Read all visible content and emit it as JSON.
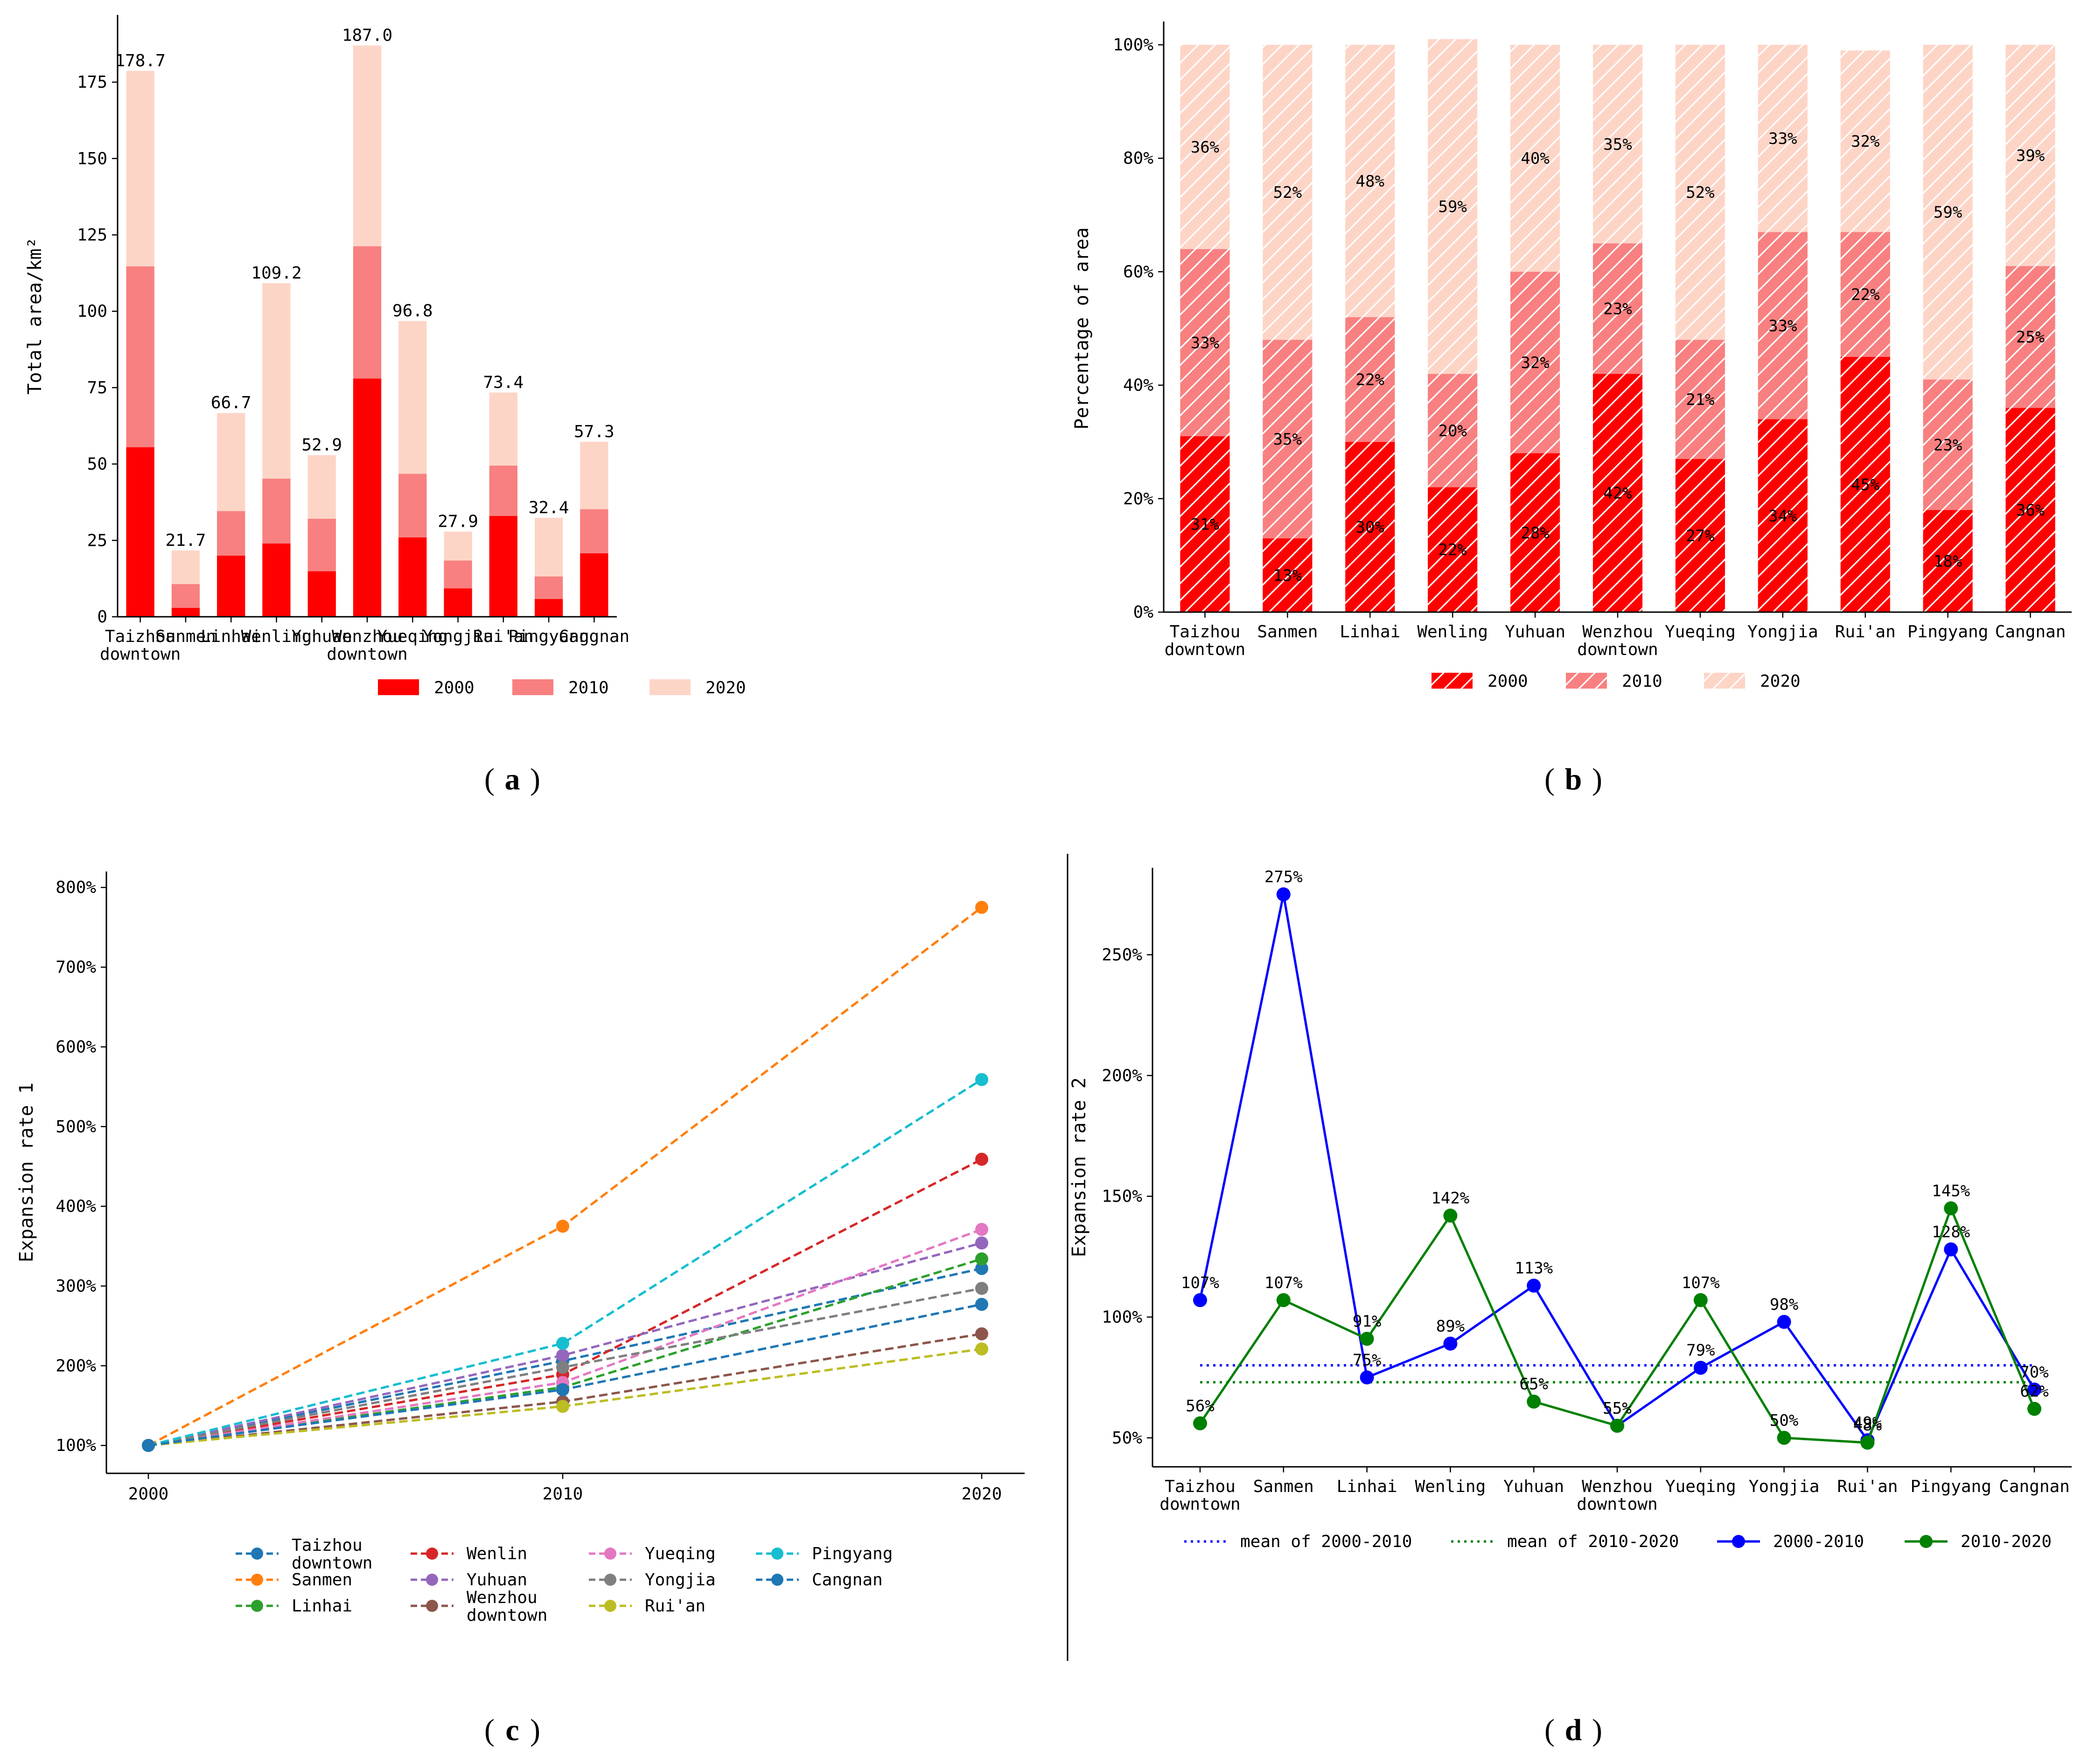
{
  "colors": {
    "c2000": "#ff0000",
    "c2010": "#f88080",
    "c2020": "#fdd5c7",
    "blue": "#0000ff",
    "green": "#008000",
    "axis": "#000000"
  },
  "chart_data": [
    {
      "panel": "a",
      "panel_label": "a",
      "type": "bar",
      "stacked": true,
      "categories": [
        "Taizhou\ndowntown",
        "Sanmen",
        "Linhai",
        "Wenling",
        "Yuhuan",
        "Wenzhou\ndowntown",
        "Yueqing",
        "Yongjia",
        "Rui'an",
        "Pingyang",
        "Cangnan"
      ],
      "series": [
        {
          "name": "2000",
          "values": [
            55.5,
            2.9,
            20.0,
            24.0,
            14.9,
            78.0,
            26.0,
            9.3,
            33.0,
            5.8,
            20.8
          ]
        },
        {
          "name": "2010",
          "values": [
            59.2,
            7.8,
            14.6,
            21.2,
            17.2,
            43.3,
            20.8,
            9.1,
            16.5,
            7.4,
            14.4
          ]
        },
        {
          "name": "2020",
          "values": [
            64.0,
            11.0,
            32.1,
            64.0,
            20.8,
            65.7,
            50.0,
            9.5,
            23.9,
            19.2,
            22.1
          ]
        }
      ],
      "totals": [
        178.7,
        21.7,
        66.7,
        109.2,
        52.9,
        187.0,
        96.8,
        27.9,
        73.4,
        32.4,
        57.3
      ],
      "total_labels": [
        "178.7",
        "21.7",
        "66.7",
        "109.2",
        "52.9",
        "187.0",
        "96.8",
        "27.9",
        "73.4",
        "32.4",
        "57.3"
      ],
      "ylabel": "Total area/km²",
      "ylim": [
        0,
        197
      ],
      "yticks": [
        0,
        25,
        50,
        75,
        100,
        125,
        150,
        175
      ],
      "legend": [
        "2000",
        "2010",
        "2020"
      ],
      "legend_position": "bottom"
    },
    {
      "panel": "b",
      "panel_label": "b",
      "type": "bar",
      "stacked": true,
      "hatch": "diagonal",
      "categories": [
        "Taizhou\ndowntown",
        "Sanmen",
        "Linhai",
        "Wenling",
        "Yuhuan",
        "Wenzhou\ndowntown",
        "Yueqing",
        "Yongjia",
        "Rui'an",
        "Pingyang",
        "Cangnan"
      ],
      "series": [
        {
          "name": "2000",
          "values": [
            31,
            13,
            30,
            22,
            28,
            42,
            27,
            34,
            45,
            18,
            36
          ]
        },
        {
          "name": "2010",
          "values": [
            33,
            35,
            22,
            20,
            32,
            23,
            21,
            33,
            22,
            23,
            25
          ]
        },
        {
          "name": "2020",
          "values": [
            36,
            52,
            48,
            59,
            40,
            35,
            52,
            33,
            32,
            59,
            39
          ]
        }
      ],
      "labels": [
        [
          "31%",
          "13%",
          "30%",
          "22%",
          "28%",
          "42%",
          "27%",
          "34%",
          "45%",
          "18%",
          "36%"
        ],
        [
          "33%",
          "35%",
          "22%",
          "20%",
          "32%",
          "23%",
          "21%",
          "33%",
          "22%",
          "23%",
          "25%"
        ],
        [
          "36%",
          "52%",
          "48%",
          "59%",
          "40%",
          "35%",
          "52%",
          "33%",
          "32%",
          "59%",
          "39%"
        ]
      ],
      "ylabel": "Percentage of area",
      "ylim": [
        0,
        100
      ],
      "yticks": [
        "0%",
        "20%",
        "40%",
        "60%",
        "80%",
        "100%"
      ],
      "legend": [
        "2000",
        "2010",
        "2020"
      ],
      "legend_position": "bottom"
    },
    {
      "panel": "c",
      "panel_label": "c",
      "type": "line",
      "x": [
        2000,
        2010,
        2020
      ],
      "xticks": [
        "2000",
        "2010",
        "2020"
      ],
      "series": [
        {
          "name": "Taizhou\ndowntown",
          "color": "#1f77b4",
          "values": [
            100,
            206,
            322
          ]
        },
        {
          "name": "Sanmen",
          "color": "#ff7f0e",
          "values": [
            100,
            375,
            775
          ]
        },
        {
          "name": "Linhai",
          "color": "#2ca02c",
          "values": [
            100,
            173,
            334
          ]
        },
        {
          "name": "Wenlin",
          "color": "#d62728",
          "values": [
            100,
            189,
            459
          ]
        },
        {
          "name": "Yuhuan",
          "color": "#9467bd",
          "values": [
            100,
            213,
            354
          ]
        },
        {
          "name": "Wenzhou\ndowntown",
          "color": "#8c564b",
          "values": [
            100,
            155,
            240
          ]
        },
        {
          "name": "Yueqing",
          "color": "#e377c2",
          "values": [
            100,
            179,
            371
          ]
        },
        {
          "name": "Yongjia",
          "color": "#7f7f7f",
          "values": [
            100,
            198,
            297
          ]
        },
        {
          "name": "Rui'an",
          "color": "#bcbd22",
          "values": [
            100,
            149,
            221
          ]
        },
        {
          "name": "Pingyang",
          "color": "#17becf",
          "values": [
            100,
            228,
            559
          ]
        },
        {
          "name": "Cangnan",
          "color": "#1f77b4",
          "values": [
            100,
            170,
            277
          ]
        }
      ],
      "ylabel": "Expansion rate 1",
      "ylim": [
        65,
        820
      ],
      "yticks": [
        "100%",
        "200%",
        "300%",
        "400%",
        "500%",
        "600%",
        "700%",
        "800%"
      ],
      "legend_position": "bottom"
    },
    {
      "panel": "d",
      "panel_label": "d",
      "type": "line",
      "categories": [
        "Taizhou\ndowntown",
        "Sanmen",
        "Linhai",
        "Wenling",
        "Yuhuan",
        "Wenzhou\ndowntown",
        "Yueqing",
        "Yongjia",
        "Rui'an",
        "Pingyang",
        "Cangnan"
      ],
      "series": [
        {
          "name": "2000-2010",
          "color": "#0000ff",
          "values": [
            107,
            275,
            75,
            89,
            113,
            55,
            79,
            98,
            49,
            128,
            70
          ],
          "labels": [
            "107%",
            "275%",
            "75%",
            "89%",
            "113%",
            "55%",
            "79%",
            "98%",
            "49%",
            "128%",
            "70%"
          ]
        },
        {
          "name": "2010-2020",
          "color": "#008000",
          "values": [
            56,
            107,
            91,
            142,
            65,
            55,
            107,
            50,
            48,
            145,
            62
          ],
          "labels": [
            "56%",
            "107%",
            "91%",
            "142%",
            "65%",
            "55%",
            "107%",
            "50%",
            "48%",
            "145%",
            "62%"
          ]
        }
      ],
      "means": [
        {
          "name": "mean of 2000-2010",
          "color": "#0000ff",
          "value": 80
        },
        {
          "name": "mean of 2010-2020",
          "color": "#008000",
          "value": 73
        }
      ],
      "ylabel": "Expansion rate 2",
      "ylim": [
        38,
        286
      ],
      "yticks": [
        "50%",
        "100%",
        "150%",
        "200%",
        "250%"
      ],
      "legend": [
        "mean of 2000-2010",
        "mean of 2010-2020",
        "2000-2010",
        "2010-2020"
      ],
      "legend_position": "bottom"
    }
  ]
}
